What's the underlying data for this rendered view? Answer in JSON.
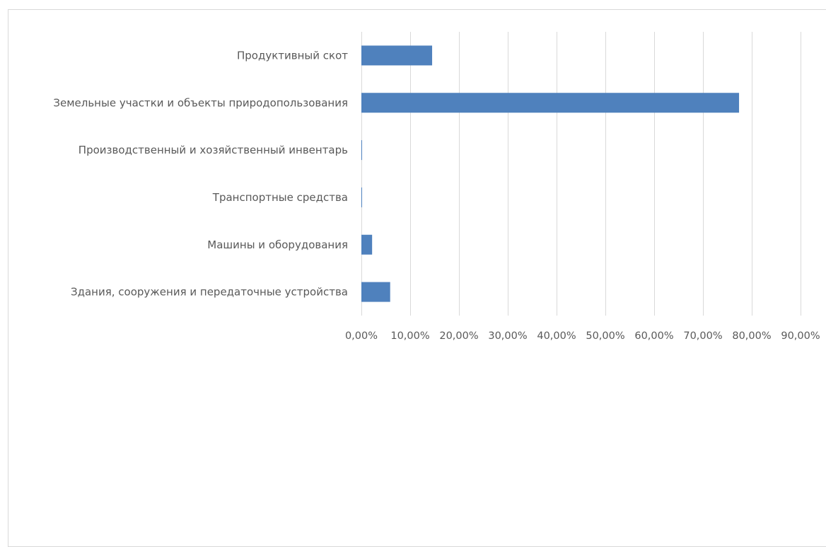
{
  "chart_data": {
    "type": "bar",
    "orientation": "horizontal",
    "categories": [
      "Продуктивный скот",
      "Земельные участки и объекты природопользования",
      "Производственный и хозяйственный инвентарь",
      "Транспортные средства",
      "Машины и оборудования",
      "Здания, сооружения и передаточные устройства"
    ],
    "values": [
      14.5,
      77.4,
      0.1,
      0.1,
      2.2,
      5.9
    ],
    "xlim": [
      0,
      90
    ],
    "tick_values": [
      0,
      10,
      20,
      30,
      40,
      50,
      60,
      70,
      80,
      90
    ],
    "tick_labels": [
      "0,00%",
      "10,00%",
      "20,00%",
      "30,00%",
      "40,00%",
      "50,00%",
      "60,00%",
      "70,00%",
      "80,00%",
      "90,00%"
    ],
    "bar_color": "#4f81bd",
    "gridline_color": "#d9d9d9",
    "grid": true,
    "title": "",
    "xlabel": "",
    "ylabel": ""
  }
}
